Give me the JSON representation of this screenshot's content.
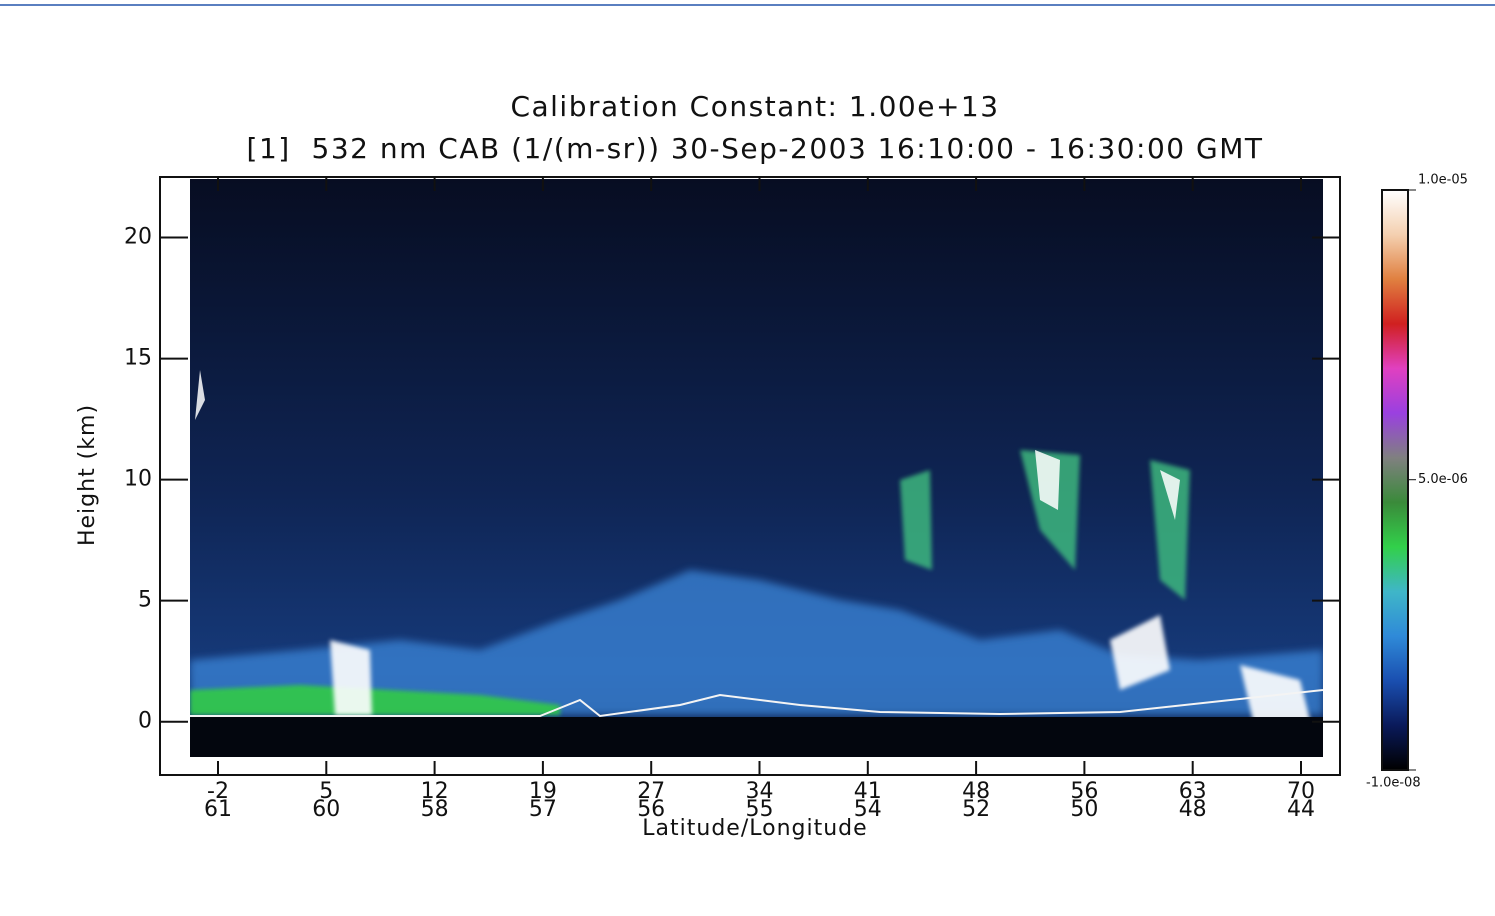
{
  "chart_data": {
    "type": "heatmap",
    "title": "Calibration Constant: 1.00e+13",
    "subtitle": "[1]  532 nm CAB (1/(m-sr)) 30-Sep-2003 16:10:00 - 16:30:00 GMT",
    "y_label": "Height (km)",
    "x_label": "Latitude/Longitude",
    "ylim": [
      -2.2,
      22.5
    ],
    "yticks": [
      0,
      5,
      10,
      15,
      20
    ],
    "x_tick_labels": [
      {
        "lat": "-2",
        "lon": "61"
      },
      {
        "lat": "5",
        "lon": "60"
      },
      {
        "lat": "12",
        "lon": "58"
      },
      {
        "lat": "19",
        "lon": "57"
      },
      {
        "lat": "27",
        "lon": "56"
      },
      {
        "lat": "34",
        "lon": "55"
      },
      {
        "lat": "41",
        "lon": "54"
      },
      {
        "lat": "48",
        "lon": "52"
      },
      {
        "lat": "56",
        "lon": "50"
      },
      {
        "lat": "63",
        "lon": "48"
      },
      {
        "lat": "70",
        "lon": "44"
      }
    ],
    "colorbar": {
      "clim": [
        -1e-08,
        1e-05
      ],
      "ticks": [
        {
          "value": 1e-05,
          "label": "1.0e-05"
        },
        {
          "value": 5e-06,
          "label": "5.0e-06"
        },
        {
          "value": -1e-08,
          "label": "-1.0e-08"
        }
      ],
      "colormap": [
        "#000000",
        "#0a1a5a",
        "#1a4fb0",
        "#2f8ad8",
        "#3fb6c8",
        "#32d04a",
        "#3a8a3a",
        "#808080",
        "#9a40e0",
        "#e040c0",
        "#d02020",
        "#e08040",
        "#f4d0b0",
        "#ffffff"
      ]
    }
  }
}
